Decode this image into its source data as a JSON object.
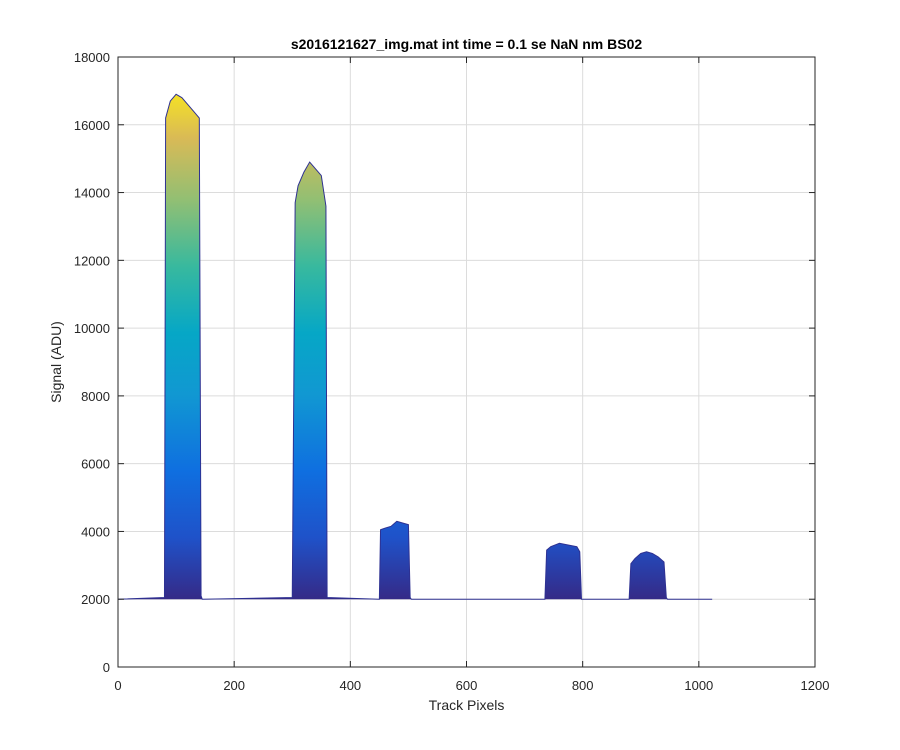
{
  "chart_data": {
    "type": "area",
    "title": "s2016121627_img.mat int time = 0.1 se  NaN nm BS02",
    "xlabel": "Track Pixels",
    "ylabel": "Signal (ADU)",
    "xlim": [
      0,
      1200
    ],
    "ylim": [
      0,
      18000
    ],
    "xticks": [
      0,
      200,
      400,
      600,
      800,
      1000,
      1200
    ],
    "yticks": [
      0,
      2000,
      4000,
      6000,
      8000,
      10000,
      12000,
      14000,
      16000,
      18000
    ],
    "xtick_labels": [
      "0",
      "200",
      "400",
      "600",
      "800",
      "1000",
      "1200"
    ],
    "ytick_labels": [
      "0",
      "2000",
      "4000",
      "6000",
      "8000",
      "10000",
      "12000",
      "14000",
      "16000",
      "18000"
    ],
    "grid": true,
    "baseline": 2000,
    "colormap": "parula",
    "colors": {
      "axis": "#262626",
      "grid": "#dcdcdc",
      "baseline_line": "#2e3192"
    },
    "series": [
      {
        "x": [
          0,
          80,
          82,
          90,
          100,
          110,
          120,
          130,
          140,
          143,
          145,
          300,
          305,
          310,
          320,
          330,
          340,
          350,
          358,
          360,
          450,
          452,
          460,
          470,
          480,
          490,
          500,
          503,
          505,
          735,
          738,
          745,
          760,
          775,
          790,
          795,
          798,
          880,
          883,
          890,
          900,
          910,
          920,
          930,
          940,
          944,
          946,
          1023
        ],
        "y": [
          2000,
          2050,
          16200,
          16700,
          16900,
          16800,
          16600,
          16400,
          16200,
          2100,
          2000,
          2050,
          13700,
          14200,
          14600,
          14900,
          14700,
          14500,
          13600,
          2050,
          2000,
          4050,
          4100,
          4150,
          4300,
          4250,
          4200,
          2050,
          2000,
          2000,
          3450,
          3550,
          3650,
          3600,
          3550,
          3400,
          2000,
          2000,
          3050,
          3200,
          3350,
          3400,
          3350,
          3250,
          3100,
          2050,
          2000,
          2000
        ]
      }
    ]
  }
}
